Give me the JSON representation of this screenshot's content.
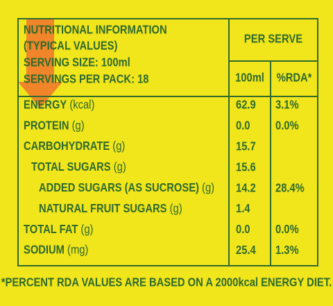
{
  "header": {
    "title": "NUTRITIONAL INFORMATION",
    "subtitle": "(TYPICAL VALUES)",
    "serving_size": "SERVING SIZE: 100ml",
    "servings_per_pack": "SERVINGS PER PACK: 18",
    "per_serve": "PER SERVE",
    "col_amount": "100ml",
    "col_rda": "%RDA*"
  },
  "table": {
    "rows": [
      {
        "name": "ENERGY",
        "unit": " (kcal)",
        "level": 0,
        "amount": "62.9",
        "rda": "3.1%"
      },
      {
        "name": "PROTEIN",
        "unit": " (g)",
        "level": 0,
        "amount": "0.0",
        "rda": "0.0%"
      },
      {
        "name": "CARBOHYDRATE",
        "unit": " (g)",
        "level": 0,
        "amount": "15.7"
      },
      {
        "name": "TOTAL SUGARS",
        "unit": " (g)",
        "level": 1,
        "amount": "15.6"
      },
      {
        "name": "ADDED SUGARS (AS SUCROSE)",
        "unit": " (g)",
        "level": 2,
        "amount": "14.2",
        "rda": "28.4%"
      },
      {
        "name": "NATURAL FRUIT SUGARS",
        "unit": " (g)",
        "level": 2,
        "amount": "1.4"
      },
      {
        "name": "TOTAL FAT",
        "unit": " (g)",
        "level": 0,
        "amount": "0.0",
        "rda": "0.0%"
      },
      {
        "name": "SODIUM",
        "unit": " (mg)",
        "level": 0,
        "amount": "25.4",
        "rda": "1.3%"
      }
    ]
  },
  "footnote": "*PERCENT RDA VALUES ARE BASED ON A 2000kcal ENERGY DIET."
}
